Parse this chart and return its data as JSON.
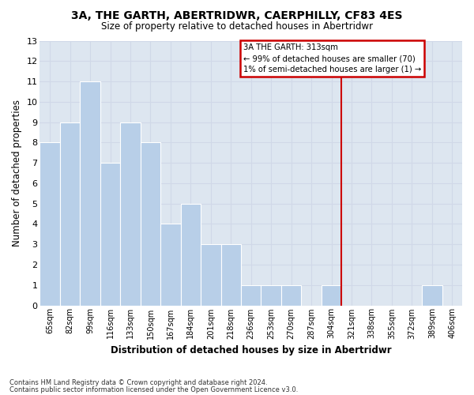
{
  "title": "3A, THE GARTH, ABERTRIDWR, CAERPHILLY, CF83 4ES",
  "subtitle": "Size of property relative to detached houses in Abertridwr",
  "xlabel": "Distribution of detached houses by size in Abertridwr",
  "ylabel": "Number of detached properties",
  "categories": [
    "65sqm",
    "82sqm",
    "99sqm",
    "116sqm",
    "133sqm",
    "150sqm",
    "167sqm",
    "184sqm",
    "201sqm",
    "218sqm",
    "236sqm",
    "253sqm",
    "270sqm",
    "287sqm",
    "304sqm",
    "321sqm",
    "338sqm",
    "355sqm",
    "372sqm",
    "389sqm",
    "406sqm"
  ],
  "values": [
    8,
    9,
    11,
    7,
    9,
    8,
    4,
    5,
    3,
    3,
    1,
    1,
    1,
    0,
    1,
    0,
    0,
    0,
    0,
    1,
    0
  ],
  "bar_color": "#b8cfe8",
  "bar_edge_color": "#b8cfe8",
  "grid_color": "#d0d8e8",
  "bg_color": "#dde6f0",
  "vline_x_index": 14.5,
  "vline_color": "#cc0000",
  "annotation_title": "3A THE GARTH: 313sqm",
  "annotation_line1": "← 99% of detached houses are smaller (70)",
  "annotation_line2": "1% of semi-detached houses are larger (1) →",
  "annotation_box_color": "#cc0000",
  "ylim": [
    0,
    13
  ],
  "yticks": [
    0,
    1,
    2,
    3,
    4,
    5,
    6,
    7,
    8,
    9,
    10,
    11,
    12,
    13
  ],
  "footer1": "Contains HM Land Registry data © Crown copyright and database right 2024.",
  "footer2": "Contains public sector information licensed under the Open Government Licence v3.0."
}
